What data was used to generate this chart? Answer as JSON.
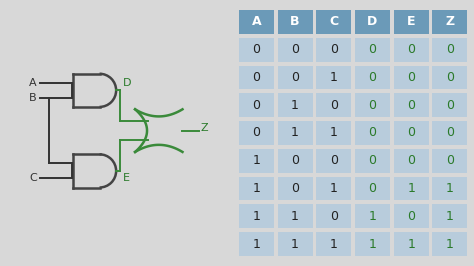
{
  "bg_color": "#d8d8d8",
  "gate_panel_bg": "#f0f0f0",
  "table_cell_bg": "#b8ccdc",
  "table_header_bg": "#6b9ab8",
  "headers": [
    "A",
    "B",
    "C",
    "D",
    "E",
    "Z"
  ],
  "header_text_color": "#ffffff",
  "input_color": "#222222",
  "output_color": "#2a7a2a",
  "rows": [
    [
      0,
      0,
      0,
      0,
      0,
      0
    ],
    [
      0,
      0,
      1,
      0,
      0,
      0
    ],
    [
      0,
      1,
      0,
      0,
      0,
      0
    ],
    [
      0,
      1,
      1,
      0,
      0,
      0
    ],
    [
      1,
      0,
      0,
      0,
      0,
      0
    ],
    [
      1,
      0,
      1,
      0,
      1,
      1
    ],
    [
      1,
      1,
      0,
      1,
      0,
      1
    ],
    [
      1,
      1,
      1,
      1,
      1,
      1
    ]
  ],
  "gate_color": "#444444",
  "gate_green": "#3a8a3a",
  "label_color": "#333333",
  "label_green": "#2a7a2a",
  "gate_lw": 1.8,
  "wire_lw": 1.4
}
